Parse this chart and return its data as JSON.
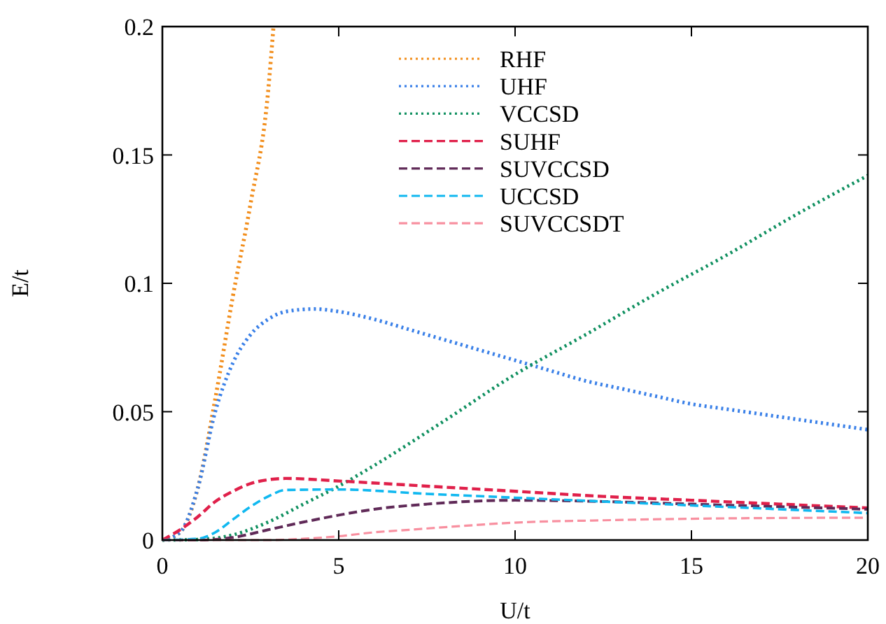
{
  "chart_data": {
    "type": "line",
    "xlabel": "U/t",
    "ylabel": "E/t",
    "xlim": [
      0,
      20
    ],
    "ylim": [
      0,
      0.2
    ],
    "xticks": [
      0,
      5,
      10,
      15,
      20
    ],
    "yticks": [
      0,
      0.05,
      0.1,
      0.15,
      0.2
    ],
    "legend": "top",
    "grid": false,
    "marker": "none",
    "series": [
      {
        "name": "RHF",
        "color": "#f28e1c",
        "line_style": "dotted",
        "x": [
          0,
          0.5,
          1,
          1.5,
          2,
          2.5,
          3,
          3.15
        ],
        "values": [
          0,
          0.003,
          0.02,
          0.055,
          0.095,
          0.131,
          0.175,
          0.2
        ]
      },
      {
        "name": "UHF",
        "color": "#3a80e8",
        "line_style": "dotted",
        "x": [
          0,
          0.5,
          1,
          1.5,
          2,
          2.5,
          3,
          3.5,
          4.3,
          5,
          6,
          7,
          8,
          9,
          10,
          11,
          12,
          13,
          14,
          15,
          16,
          17,
          18,
          19,
          20
        ],
        "values": [
          0,
          0.003,
          0.02,
          0.05,
          0.069,
          0.08,
          0.086,
          0.089,
          0.09,
          0.089,
          0.086,
          0.082,
          0.078,
          0.074,
          0.07,
          0.066,
          0.062,
          0.059,
          0.056,
          0.053,
          0.051,
          0.049,
          0.047,
          0.045,
          0.043
        ]
      },
      {
        "name": "VCCSD",
        "color": "#109060",
        "line_style": "dotted",
        "x": [
          0,
          1,
          2,
          3,
          4,
          5,
          6,
          8,
          10,
          12,
          14,
          16,
          18,
          20
        ],
        "values": [
          0,
          0.0002,
          0.002,
          0.007,
          0.014,
          0.021,
          0.029,
          0.0465,
          0.0645,
          0.08,
          0.096,
          0.111,
          0.127,
          0.142
        ]
      },
      {
        "name": "SUHF",
        "color": "#e0204a",
        "line_style": "dashed",
        "x": [
          0,
          0.5,
          1,
          1.5,
          2,
          2.5,
          3,
          3.5,
          5,
          7.5,
          10,
          12.5,
          15,
          17.5,
          20
        ],
        "values": [
          0,
          0.004,
          0.009,
          0.015,
          0.019,
          0.022,
          0.0235,
          0.024,
          0.023,
          0.021,
          0.019,
          0.017,
          0.0155,
          0.014,
          0.0125
        ]
      },
      {
        "name": "SUVCCSD",
        "color": "#602a58",
        "line_style": "dashed",
        "x": [
          0,
          1,
          2,
          3,
          4,
          5,
          6,
          7.5,
          10,
          12.5,
          15,
          17.5,
          20
        ],
        "values": [
          0,
          0,
          0.001,
          0.004,
          0.007,
          0.0097,
          0.012,
          0.014,
          0.0155,
          0.015,
          0.014,
          0.013,
          0.012
        ]
      },
      {
        "name": "UCCSD",
        "color": "#10b8f0",
        "line_style": "dashed",
        "x": [
          0,
          1,
          1.5,
          2,
          2.5,
          3,
          3.5,
          5,
          7.5,
          10,
          12.5,
          15,
          17.5,
          20
        ],
        "values": [
          0,
          0.0005,
          0.003,
          0.008,
          0.013,
          0.017,
          0.0195,
          0.0197,
          0.018,
          0.0165,
          0.015,
          0.0135,
          0.012,
          0.0105
        ]
      },
      {
        "name": "SUVCCSDT",
        "color": "#f890a0",
        "line_style": "dashed",
        "x": [
          0,
          3,
          4,
          5,
          6,
          7,
          8,
          10,
          12.5,
          15,
          17.5,
          20
        ],
        "values": [
          0,
          0,
          0.0005,
          0.0015,
          0.003,
          0.004,
          0.005,
          0.0068,
          0.0077,
          0.0083,
          0.0086,
          0.0087
        ]
      }
    ]
  }
}
